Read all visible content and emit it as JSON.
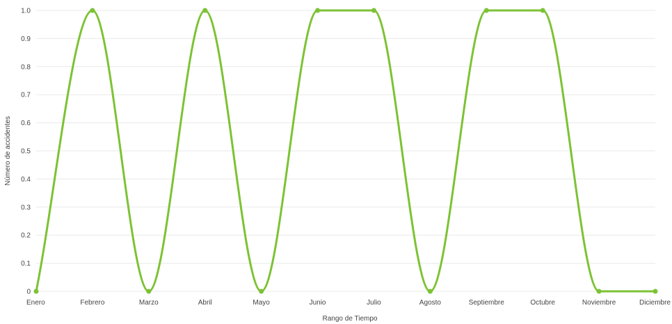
{
  "chart_data": {
    "type": "line",
    "xlabel": "Rango de Tiempo",
    "ylabel": "Número de accidentes",
    "categories": [
      "Enero",
      "Febrero",
      "Marzo",
      "Abril",
      "Mayo",
      "Junio",
      "Julio",
      "Agosto",
      "Septiembre",
      "Octubre",
      "Noviembre",
      "Diciembre"
    ],
    "series": [
      {
        "values": [
          0,
          1,
          0,
          1,
          0,
          1,
          1,
          0,
          1,
          1,
          0,
          0
        ]
      }
    ],
    "ylim": [
      0,
      1
    ],
    "yticks": [
      "0",
      "0.1",
      "0.2",
      "0.3",
      "0.4",
      "0.5",
      "0.6",
      "0.7",
      "0.8",
      "0.9",
      "1.0"
    ],
    "grid": true,
    "line_color": "#7cc234",
    "curve": "smooth"
  }
}
